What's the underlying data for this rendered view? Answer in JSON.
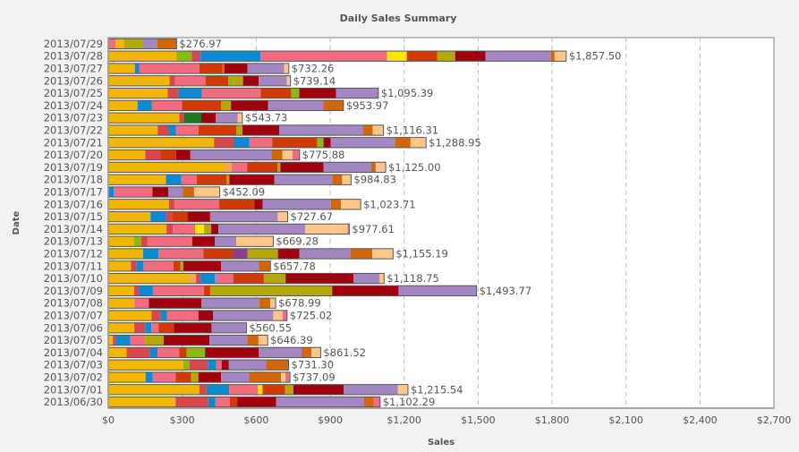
{
  "chart_data": {
    "type": "bar",
    "orientation": "horizontal",
    "stacked": true,
    "title": "Daily Sales Summary",
    "xlabel": "Sales",
    "ylabel": "Date",
    "xlim": [
      0,
      2700
    ],
    "x_ticks": [
      0,
      300,
      600,
      900,
      1200,
      1500,
      1800,
      2100,
      2400,
      2700
    ],
    "x_tick_labels": [
      "$0",
      "$300",
      "$600",
      "$900",
      "$1,200",
      "$1,500",
      "$1,800",
      "$2,100",
      "$2,400",
      "$2,700"
    ],
    "grid": "vertical-dashed",
    "legend": "none",
    "series_colors": {
      "A": "#F2B705",
      "B": "#F5A35A",
      "C": "#8CB812",
      "D": "#D9464B",
      "E": "#0C8BD3",
      "F": "#F26B7F",
      "G": "#FFE500",
      "H": "#D13A05",
      "I": "#B5A80A",
      "J": "#1B7A1F",
      "K": "#8E3E8E",
      "L": "#A0000E",
      "M": "#A287C2",
      "N": "#D2660A",
      "O": "#FFC68A",
      "P": "#F06B86"
    },
    "categories": [
      "2013/07/29",
      "2013/07/28",
      "2013/07/27",
      "2013/07/26",
      "2013/07/25",
      "2013/07/24",
      "2013/07/23",
      "2013/07/22",
      "2013/07/21",
      "2013/07/20",
      "2013/07/19",
      "2013/07/18",
      "2013/07/17",
      "2013/07/16",
      "2013/07/15",
      "2013/07/14",
      "2013/07/13",
      "2013/07/12",
      "2013/07/11",
      "2013/07/10",
      "2013/07/09",
      "2013/07/08",
      "2013/07/07",
      "2013/07/06",
      "2013/07/05",
      "2013/07/04",
      "2013/07/03",
      "2013/07/02",
      "2013/07/01",
      "2013/06/30"
    ],
    "totals": [
      276.97,
      1857.5,
      732.26,
      739.14,
      1095.39,
      953.97,
      543.73,
      1116.31,
      1288.95,
      775.88,
      1125.0,
      984.83,
      452.09,
      1023.71,
      727.67,
      977.61,
      669.28,
      1155.19,
      657.78,
      1118.75,
      1493.77,
      678.99,
      725.02,
      560.55,
      646.39,
      861.52,
      731.3,
      737.09,
      1215.54,
      1102.29
    ],
    "total_labels": [
      "$276.97",
      "$1,857.50",
      "$732.26",
      "$739.14",
      "$1,095.39",
      "$953.97",
      "$543.73",
      "$1,116.31",
      "$1,288.95",
      "$775.88",
      "$1,125.00",
      "$984.83",
      "$452.09",
      "$1,023.71",
      "$727.67",
      "$977.61",
      "$669.28",
      "$1,155.19",
      "$657.78",
      "$1,118.75",
      "$1,493.77",
      "$678.99",
      "$725.02",
      "$560.55",
      "$646.39",
      "$861.52",
      "$731.30",
      "$737.09",
      "$1,215.54",
      "$1,102.29"
    ],
    "segments": [
      [
        [
          "F",
          25
        ],
        [
          "A",
          29
        ],
        [
          "I",
          62
        ],
        [
          "M",
          51
        ],
        [
          "N",
          66
        ]
      ],
      [
        [
          "A",
          276
        ],
        [
          "C",
          62
        ],
        [
          "D",
          36
        ],
        [
          "E",
          243
        ],
        [
          "F",
          512
        ],
        [
          "G",
          80
        ],
        [
          "H",
          123
        ],
        [
          "I",
          73
        ],
        [
          "L",
          123
        ],
        [
          "M",
          265
        ],
        [
          "N",
          15
        ],
        [
          "O",
          47
        ]
      ],
      [
        [
          "A",
          105
        ],
        [
          "E",
          18
        ],
        [
          "F",
          236
        ],
        [
          "H",
          92
        ],
        [
          "N",
          7
        ],
        [
          "L",
          91
        ],
        [
          "M",
          145
        ],
        [
          "O",
          18
        ]
      ],
      [
        [
          "A",
          243
        ],
        [
          "D",
          22
        ],
        [
          "F",
          120
        ],
        [
          "H",
          91
        ],
        [
          "C",
          18
        ],
        [
          "I",
          40
        ],
        [
          "L",
          62
        ],
        [
          "M",
          112
        ],
        [
          "O",
          14
        ]
      ],
      [
        [
          "A",
          239
        ],
        [
          "D",
          44
        ],
        [
          "E",
          94
        ],
        [
          "F",
          236
        ],
        [
          "H",
          123
        ],
        [
          "C",
          33
        ],
        [
          "L",
          148
        ],
        [
          "M",
          170
        ]
      ],
      [
        [
          "A",
          117
        ],
        [
          "E",
          58
        ],
        [
          "F",
          120
        ],
        [
          "H",
          156
        ],
        [
          "I",
          40
        ],
        [
          "L",
          148
        ],
        [
          "M",
          222
        ],
        [
          "N",
          80
        ]
      ],
      [
        [
          "A",
          283
        ],
        [
          "D",
          18
        ],
        [
          "J",
          69
        ],
        [
          "L",
          58
        ],
        [
          "M",
          87
        ],
        [
          "O",
          18
        ]
      ],
      [
        [
          "A",
          199
        ],
        [
          "D",
          44
        ],
        [
          "E",
          29
        ],
        [
          "F",
          91
        ],
        [
          "H",
          152
        ],
        [
          "I",
          25
        ],
        [
          "L",
          148
        ],
        [
          "M",
          337
        ],
        [
          "N",
          40
        ],
        [
          "O",
          43
        ]
      ],
      [
        [
          "A",
          424
        ],
        [
          "D",
          80
        ],
        [
          "E",
          62
        ],
        [
          "F",
          91
        ],
        [
          "H",
          181
        ],
        [
          "C",
          25
        ],
        [
          "L",
          29
        ],
        [
          "M",
          258
        ],
        [
          "N",
          62
        ],
        [
          "O",
          62
        ]
      ],
      [
        [
          "A",
          149
        ],
        [
          "D",
          62
        ],
        [
          "H",
          62
        ],
        [
          "L",
          58
        ],
        [
          "M",
          327
        ],
        [
          "N",
          44
        ],
        [
          "O",
          40
        ],
        [
          "P",
          29
        ]
      ],
      [
        [
          "A",
          472
        ],
        [
          "B",
          25
        ],
        [
          "F",
          62
        ],
        [
          "H",
          123
        ],
        [
          "I",
          11
        ],
        [
          "L",
          174
        ],
        [
          "M",
          192
        ],
        [
          "N",
          18
        ],
        [
          "O",
          40
        ]
      ],
      [
        [
          "A",
          232
        ],
        [
          "E",
          62
        ],
        [
          "F",
          62
        ],
        [
          "H",
          120
        ],
        [
          "I",
          11
        ],
        [
          "L",
          181
        ],
        [
          "M",
          232
        ],
        [
          "N",
          40
        ],
        [
          "O",
          36
        ]
      ],
      [
        [
          "E",
          22
        ],
        [
          "F",
          152
        ],
        [
          "L",
          62
        ],
        [
          "M",
          58
        ],
        [
          "N",
          44
        ],
        [
          "O",
          101
        ]
      ],
      [
        [
          "A",
          245
        ],
        [
          "D",
          22
        ],
        [
          "F",
          181
        ],
        [
          "H",
          142
        ],
        [
          "L",
          33
        ],
        [
          "M",
          276
        ],
        [
          "N",
          40
        ],
        [
          "O",
          80
        ]
      ],
      [
        [
          "A",
          170
        ],
        [
          "E",
          62
        ],
        [
          "D",
          25
        ],
        [
          "H",
          62
        ],
        [
          "L",
          91
        ],
        [
          "M",
          272
        ],
        [
          "O",
          40
        ]
      ],
      [
        [
          "A",
          236
        ],
        [
          "D",
          25
        ],
        [
          "F",
          91
        ],
        [
          "G",
          36
        ],
        [
          "I",
          29
        ],
        [
          "L",
          29
        ],
        [
          "M",
          352
        ],
        [
          "O",
          171
        ],
        [
          "P",
          7
        ]
      ],
      [
        [
          "A",
          105
        ],
        [
          "C",
          29
        ],
        [
          "D",
          25
        ],
        [
          "F",
          181
        ],
        [
          "L",
          91
        ],
        [
          "M",
          87
        ],
        [
          "O",
          150
        ]
      ],
      [
        [
          "A",
          141
        ],
        [
          "E",
          62
        ],
        [
          "F",
          181
        ],
        [
          "H",
          120
        ],
        [
          "K",
          58
        ],
        [
          "I",
          123
        ],
        [
          "L",
          87
        ],
        [
          "M",
          207
        ],
        [
          "N",
          87
        ],
        [
          "O",
          84
        ]
      ],
      [
        [
          "A",
          91
        ],
        [
          "D",
          22
        ],
        [
          "E",
          29
        ],
        [
          "F",
          120
        ],
        [
          "H",
          29
        ],
        [
          "I",
          11
        ],
        [
          "L",
          152
        ],
        [
          "M",
          152
        ],
        [
          "N",
          47
        ]
      ],
      [
        [
          "A",
          323
        ],
        [
          "B",
          29
        ],
        [
          "D",
          18
        ],
        [
          "E",
          58
        ],
        [
          "M",
          11
        ],
        [
          "F",
          62
        ],
        [
          "H",
          123
        ],
        [
          "I",
          87
        ],
        [
          "L",
          272
        ],
        [
          "M",
          105
        ],
        [
          "O",
          18
        ]
      ],
      [
        [
          "A",
          105
        ],
        [
          "D",
          18
        ],
        [
          "E",
          58
        ],
        [
          "F",
          207
        ],
        [
          "H",
          25
        ],
        [
          "I",
          494
        ],
        [
          "L",
          269
        ],
        [
          "M",
          316
        ]
      ],
      [
        [
          "A",
          105
        ],
        [
          "F",
          58
        ],
        [
          "L",
          210
        ],
        [
          "M",
          232
        ],
        [
          "N",
          44
        ],
        [
          "O",
          22
        ]
      ],
      [
        [
          "A",
          170
        ],
        [
          "D",
          36
        ],
        [
          "E",
          25
        ],
        [
          "F",
          123
        ],
        [
          "L",
          58
        ],
        [
          "M",
          236
        ],
        [
          "O",
          36
        ],
        [
          "P",
          18
        ]
      ],
      [
        [
          "A",
          105
        ],
        [
          "D",
          44
        ],
        [
          "E",
          25
        ],
        [
          "F",
          29
        ],
        [
          "H",
          62
        ],
        [
          "L",
          152
        ],
        [
          "M",
          141
        ]
      ],
      [
        [
          "A",
          18
        ],
        [
          "D",
          11
        ],
        [
          "E",
          58
        ],
        [
          "F",
          58
        ],
        [
          "I",
          73
        ],
        [
          "L",
          181
        ],
        [
          "M",
          149
        ],
        [
          "N",
          44
        ],
        [
          "O",
          36
        ]
      ],
      [
        [
          "A",
          73
        ],
        [
          "D",
          94
        ],
        [
          "E",
          29
        ],
        [
          "F",
          87
        ],
        [
          "H",
          29
        ],
        [
          "C",
          73
        ],
        [
          "L",
          214
        ],
        [
          "M",
          170
        ],
        [
          "N",
          40
        ],
        [
          "O",
          36
        ]
      ],
      [
        [
          "A",
          301
        ],
        [
          "C",
          25
        ],
        [
          "D",
          73
        ],
        [
          "E",
          33
        ],
        [
          "F",
          22
        ],
        [
          "L",
          29
        ],
        [
          "M",
          148
        ],
        [
          "N",
          91
        ]
      ],
      [
        [
          "A",
          149
        ],
        [
          "E",
          29
        ],
        [
          "F",
          91
        ],
        [
          "H",
          62
        ],
        [
          "I",
          29
        ],
        [
          "L",
          91
        ],
        [
          "M",
          112
        ],
        [
          "N",
          127
        ],
        [
          "O",
          18
        ],
        [
          "P",
          18
        ]
      ],
      [
        [
          "A",
          366
        ],
        [
          "D",
          29
        ],
        [
          "E",
          91
        ],
        [
          "F",
          116
        ],
        [
          "G",
          18
        ],
        [
          "H",
          91
        ],
        [
          "I",
          33
        ],
        [
          "L",
          203
        ],
        [
          "M",
          218
        ],
        [
          "O",
          40
        ]
      ],
      [
        [
          "A",
          270
        ],
        [
          "D",
          131
        ],
        [
          "E",
          29
        ],
        [
          "F",
          58
        ],
        [
          "H",
          29
        ],
        [
          "L",
          156
        ],
        [
          "M",
          352
        ],
        [
          "N",
          40
        ],
        [
          "P",
          25
        ]
      ]
    ]
  }
}
